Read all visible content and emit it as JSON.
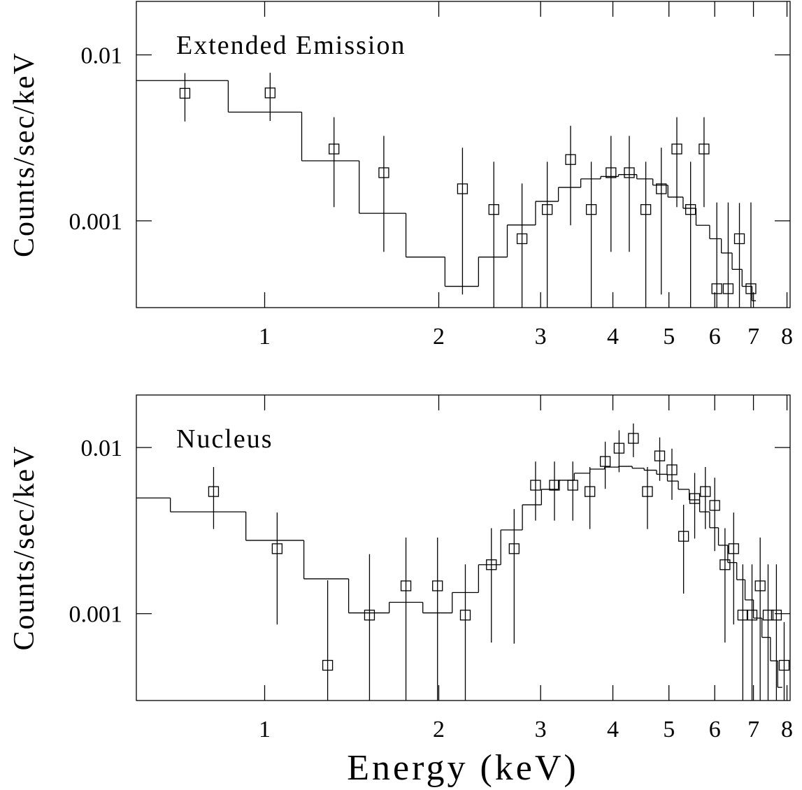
{
  "chart_data": [
    {
      "type": "scatter",
      "annotation": "Extended Emission",
      "ylabel": "Counts/sec/keV",
      "xscale": "log",
      "yscale": "log",
      "xlim": [
        0.6,
        8.1
      ],
      "ylim": [
        0.0003,
        0.021
      ],
      "xticks": [
        1,
        2,
        3,
        4,
        5,
        6,
        7,
        8
      ],
      "yticks": [
        0.001,
        0.01
      ],
      "x": [
        0.728,
        1.022,
        1.318,
        1.607,
        2.198,
        2.49,
        2.786,
        3.08,
        3.38,
        3.67,
        3.97,
        4.27,
        4.56,
        4.85,
        5.16,
        5.45,
        5.75,
        6.05,
        6.33,
        6.62,
        6.93
      ],
      "values": [
        0.00587,
        0.0059,
        0.00271,
        0.00195,
        0.00156,
        0.00117,
        0.00078,
        0.00117,
        0.00234,
        0.00117,
        0.00195,
        0.00195,
        0.00117,
        0.00156,
        0.00271,
        0.00117,
        0.00271,
        0.00039,
        0.00039,
        0.00078,
        0.00039
      ],
      "errors": [
        0.0019,
        0.0019,
        0.0015,
        0.0013,
        0.0012,
        0.0011,
        0.0009,
        0.0011,
        0.0014,
        0.0011,
        0.0013,
        0.0013,
        0.0011,
        0.0012,
        0.0015,
        0.0011,
        0.0015,
        0.0009,
        0.0009,
        0.0005,
        0.0009
      ],
      "step": {
        "bins": [
          0.6,
          0.865,
          1.159,
          1.457,
          1.755,
          2.05,
          2.343,
          2.627,
          2.94,
          3.22,
          3.52,
          3.81,
          4.09,
          4.4,
          4.69,
          4.98,
          5.29,
          5.57,
          5.88,
          6.16,
          6.43,
          6.69,
          6.96,
          7.07
        ],
        "values": [
          0.007,
          0.00452,
          0.0023,
          0.00111,
          0.000605,
          0.000403,
          0.000605,
          0.000944,
          0.00131,
          0.00159,
          0.00179,
          0.00185,
          0.0019,
          0.00179,
          0.00164,
          0.00139,
          0.00119,
          0.00094,
          0.00078,
          0.00064,
          0.00051,
          0.000403,
          0.00033
        ]
      }
    },
    {
      "type": "scatter",
      "annotation": "Nucleus",
      "ylabel": "Counts/sec/keV",
      "xlabel": "Energy (keV)",
      "xscale": "log",
      "yscale": "log",
      "xlim": [
        0.6,
        8.1
      ],
      "ylim": [
        0.0003,
        0.0207
      ],
      "xticks": [
        1,
        2,
        3,
        4,
        5,
        6,
        7,
        8
      ],
      "yticks": [
        0.001,
        0.01
      ],
      "x": [
        0.816,
        1.051,
        1.285,
        1.518,
        1.755,
        1.99,
        2.223,
        2.466,
        2.7,
        2.94,
        3.17,
        3.41,
        3.65,
        3.88,
        4.1,
        4.34,
        4.59,
        4.82,
        5.06,
        5.3,
        5.54,
        5.78,
        6.0,
        6.25,
        6.47,
        6.71,
        6.96,
        7.19,
        7.42,
        7.67,
        7.91
      ],
      "values": [
        0.00543,
        0.00246,
        0.000489,
        0.00098,
        0.00147,
        0.00147,
        0.00098,
        0.00197,
        0.00246,
        0.00593,
        0.00593,
        0.00593,
        0.00543,
        0.00824,
        0.0099,
        0.01135,
        0.00543,
        0.0089,
        0.00734,
        0.00292,
        0.00493,
        0.00543,
        0.00448,
        0.00197,
        0.00246,
        0.00098,
        0.00098,
        0.00147,
        0.00098,
        0.00098,
        0.000489
      ],
      "errors": [
        0.0022,
        0.0016,
        0.0011,
        0.0013,
        0.0014,
        0.0014,
        0.001,
        0.0013,
        0.0018,
        0.0023,
        0.0023,
        0.0023,
        0.0022,
        0.0026,
        0.0028,
        0.0026,
        0.0022,
        0.0026,
        0.0025,
        0.0016,
        0.0021,
        0.0022,
        0.0021,
        0.0013,
        0.0016,
        0.001,
        0.001,
        0.0014,
        0.001,
        0.001,
        0.0004
      ],
      "step": {
        "bins": [
          0.6,
          0.687,
          0.928,
          1.169,
          1.397,
          1.642,
          1.877,
          2.11,
          2.343,
          2.56,
          2.79,
          3.01,
          3.22,
          3.43,
          3.65,
          3.87,
          4.09,
          4.32,
          4.53,
          4.76,
          4.97,
          5.19,
          5.42,
          5.65,
          5.88,
          6.09,
          6.32,
          6.55,
          6.77,
          7.0,
          7.24,
          7.49,
          7.71,
          7.85
        ],
        "values": [
          0.00497,
          0.0041,
          0.00276,
          0.00162,
          0.00101,
          0.00117,
          0.00101,
          0.00134,
          0.00197,
          0.00319,
          0.00452,
          0.0056,
          0.00635,
          0.007,
          0.00741,
          0.00762,
          0.0077,
          0.0075,
          0.0073,
          0.0069,
          0.00628,
          0.0056,
          0.00484,
          0.0041,
          0.00329,
          0.00258,
          0.00203,
          0.0016,
          0.00121,
          0.00094,
          0.00072,
          0.00052,
          0.00036
        ]
      }
    }
  ]
}
